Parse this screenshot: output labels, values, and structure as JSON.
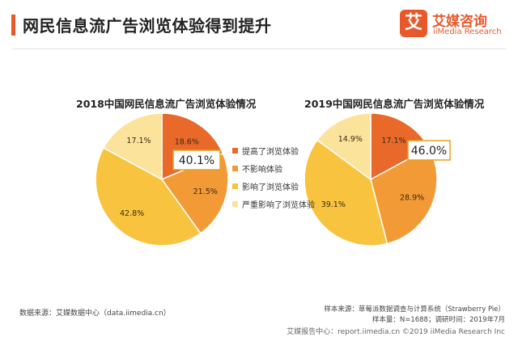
{
  "header": {
    "title": "网民信息流广告浏览体验得到提升",
    "logo_mark": "艾",
    "logo_cn": "艾媒咨询",
    "logo_en": "iiMedia Research"
  },
  "colors": {
    "accent": "#e8582b",
    "improved": "#e8692a",
    "no_effect": "#f29a35",
    "affected": "#f8c440",
    "severe": "#fbe39c"
  },
  "chart_data": [
    {
      "type": "pie",
      "title": "2018中国网民信息流广告浏览体验情况",
      "categories": [
        "提高了浏览体验",
        "不影响体验",
        "影响了浏览体验",
        "严重影响了浏览体验"
      ],
      "values": [
        18.6,
        21.5,
        42.8,
        17.1
      ],
      "value_labels": [
        "18.6%",
        "21.5%",
        "42.8%",
        "17.1%"
      ],
      "highlight": "40.1%",
      "legend_placement": "right"
    },
    {
      "type": "pie",
      "title": "2019中国网民信息流广告浏览体验情况",
      "categories": [
        "提高了浏览体验",
        "不影响体验",
        "影响了浏览体验",
        "严重影响了浏览体验"
      ],
      "values": [
        17.1,
        28.9,
        39.1,
        14.9
      ],
      "value_labels": [
        "17.1%",
        "28.9%",
        "39.1%",
        "14.9%"
      ],
      "highlight": "46.0%"
    }
  ],
  "footer": {
    "source": "数据来源：艾媒数据中心（data.iimedia.cn）",
    "sample_source": "样本来源：草莓派数据调查与计算系统（Strawberry Pie）",
    "sample_info": "样本量：N=1688；调研时间：2019年7月",
    "bottom": "艾媒报告中心：report.iimedia.cn  ©2019  iiMedia Research  Inc"
  }
}
